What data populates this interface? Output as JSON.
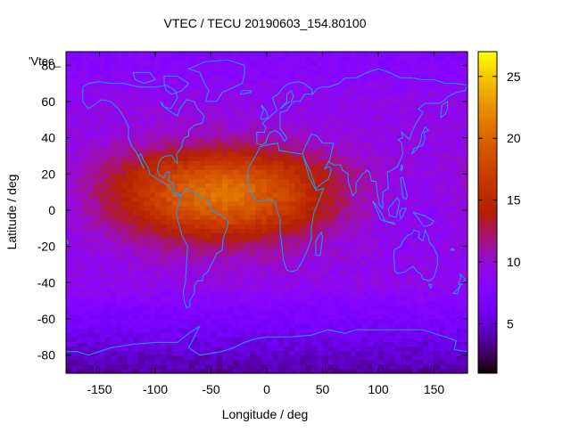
{
  "chart_data": {
    "type": "heatmap",
    "title": "VTEC / TECU 20190603_154.80100",
    "xlabel": "Longitude / deg",
    "ylabel": "Latitude / deg",
    "key_label": "'Vtec_",
    "xlim": [
      -180,
      180
    ],
    "ylim": [
      -90,
      87.5
    ],
    "x_ticks": [
      -150,
      -100,
      -50,
      0,
      50,
      100,
      150
    ],
    "y_ticks": [
      -80,
      -60,
      -40,
      -20,
      0,
      20,
      40,
      60,
      80
    ],
    "colorbar": {
      "min": 1,
      "max": 27,
      "ticks": [
        5,
        10,
        15,
        20,
        25
      ],
      "palette": "gnuplot-black-blue-purple-red-orange-yellow"
    },
    "grid": false,
    "overlay": "coastlines",
    "grid_resolution": {
      "lon_step": 5,
      "lat_step": 2.5
    }
  },
  "colors": {
    "coastline": "#1e9bff",
    "text": "#000000"
  }
}
